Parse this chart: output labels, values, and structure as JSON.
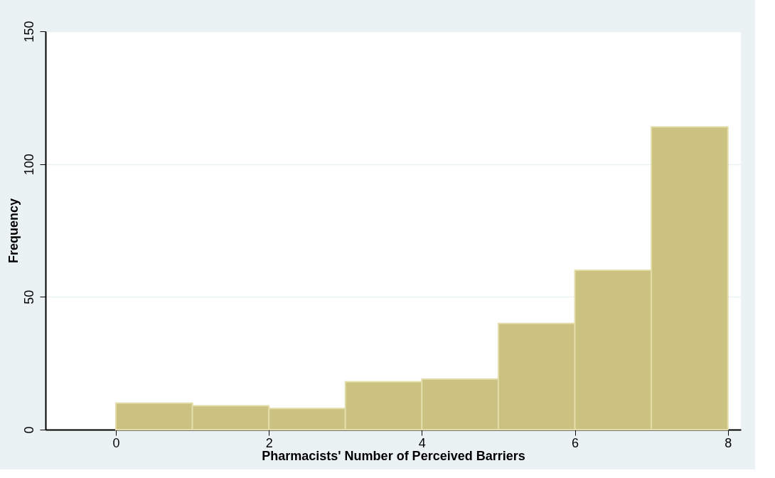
{
  "chart_data": {
    "type": "histogram",
    "xlabel": "Pharmacists' Number of Perceived Barriers",
    "ylabel": "Frequency",
    "bins": [
      0,
      1,
      2,
      3,
      4,
      5,
      6,
      7,
      8
    ],
    "values": [
      10,
      9,
      8,
      18,
      19,
      40,
      60,
      114
    ],
    "color": "#cbc281",
    "xlim": [
      -0.92,
      8.17
    ],
    "ylim": [
      0,
      150
    ],
    "xticks": [
      0,
      2,
      4,
      6,
      8
    ],
    "yticks": [
      0,
      50,
      100,
      150
    ],
    "grid": "y"
  }
}
